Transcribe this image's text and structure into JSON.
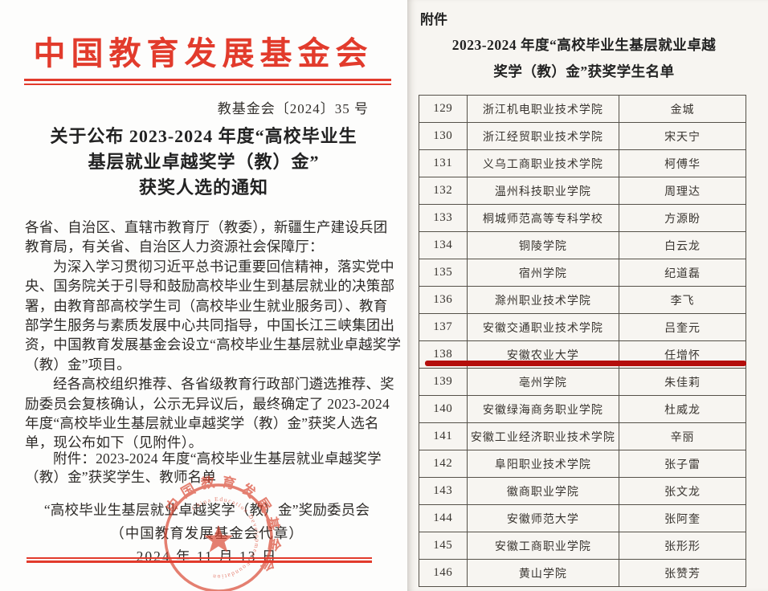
{
  "left_page": {
    "org_name": "中国教育发展基金会",
    "doc_number": "教基金会〔2024〕35 号",
    "title_line1": "关于公布 2023-2024 年度“高校毕业生",
    "title_line2": "基层就业卓越奖学（教）金”",
    "title_line3": "获奖人选的通知",
    "body_paragraphs": [
      {
        "indent": false,
        "lines": [
          "各省、自治区、直辖市教育厅（教委），新疆生产建设兵团",
          "教育局，有关省、自治区人力资源社会保障厅："
        ]
      },
      {
        "indent": true,
        "lines": [
          "为深入学习贯彻习近平总书记重要回信精神，落实党中",
          "央、国务院关于引导和鼓励高校毕业生到基层就业的决策部",
          "署，由教育部高校学生司（高校毕业生就业服务司）、教育",
          "部学生服务与素质发展中心共同指导，中国长江三峡集团出",
          "资，中国教育发展基金会设立“高校毕业生基层就业卓越奖学",
          "（教）金”项目。"
        ]
      },
      {
        "indent": true,
        "lines": [
          "经各高校组织推荐、各省级教育行政部门遴选推荐、奖",
          "励委员会复核确认，公示无异议后，最终确定了 2023-2024",
          "年度“高校毕业生基层就业卓越奖学（教）金”获奖人选名",
          "单，现公布如下（见附件）。"
        ]
      }
    ],
    "attachment_note": {
      "indent": true,
      "lines": [
        "附件：2023-2024 年度“高校毕业生基层就业卓越奖学",
        "（教）金”获奖学生、教师名单"
      ]
    },
    "signature_line1": "“高校毕业生基层就业卓越奖学（教）金”奖励委员会",
    "signature_line2": "（中国教育发展基金会代章）",
    "signature_date": "2024 年 11 月 13 日",
    "seal": {
      "ring_text": "中国教育发展基金会",
      "latin_text": "China Education Development Foundation"
    }
  },
  "right_page": {
    "attachment_label": "附件",
    "table_title_line1": "2023-2024 年度“高校毕业生基层就业卓越",
    "table_title_line2": "奖学（教）金”获奖学生名单",
    "table": {
      "highlight_row_no": "138",
      "rows": [
        {
          "no": "129",
          "school": "浙江机电职业技术学院",
          "name": "金城"
        },
        {
          "no": "130",
          "school": "浙江经贸职业技术学院",
          "name": "宋天宁"
        },
        {
          "no": "131",
          "school": "义乌工商职业技术学院",
          "name": "柯傅华"
        },
        {
          "no": "132",
          "school": "温州科技职业学院",
          "name": "周理达"
        },
        {
          "no": "133",
          "school": "桐城师范高等专科学校",
          "name": "方源盼"
        },
        {
          "no": "134",
          "school": "铜陵学院",
          "name": "白云龙"
        },
        {
          "no": "135",
          "school": "宿州学院",
          "name": "纪道磊"
        },
        {
          "no": "136",
          "school": "滁州职业技术学院",
          "name": "李飞"
        },
        {
          "no": "137",
          "school": "安徽交通职业技术学院",
          "name": "吕奎元"
        },
        {
          "no": "138",
          "school": "安徽农业大学",
          "name": "任增怀"
        },
        {
          "no": "139",
          "school": "亳州学院",
          "name": "朱佳莉"
        },
        {
          "no": "140",
          "school": "安徽绿海商务职业学院",
          "name": "杜威龙"
        },
        {
          "no": "141",
          "school": "安徽工业经济职业技术学院",
          "name": "辛丽"
        },
        {
          "no": "142",
          "school": "阜阳职业技术学院",
          "name": "张子雷"
        },
        {
          "no": "143",
          "school": "徽商职业学院",
          "name": "张文龙"
        },
        {
          "no": "144",
          "school": "安徽师范大学",
          "name": "张阿奎"
        },
        {
          "no": "145",
          "school": "安徽工商职业学院",
          "name": "张形形"
        },
        {
          "no": "146",
          "school": "黄山学院",
          "name": "张赞芳"
        }
      ]
    }
  },
  "colors": {
    "header_red": "#e23b2c",
    "underline_red": "#b40e0c",
    "seal_red": "#d9442f",
    "table_border": "#555149"
  }
}
